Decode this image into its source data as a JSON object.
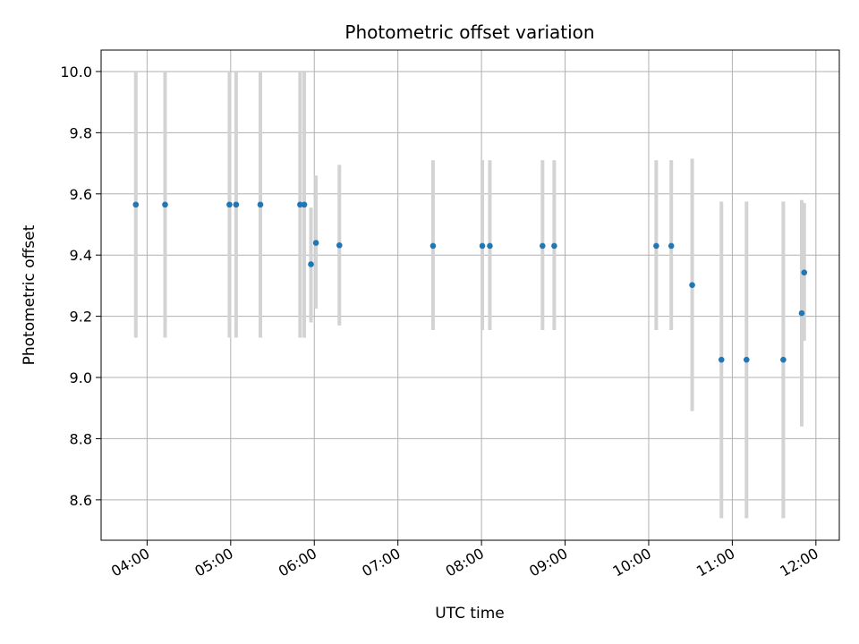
{
  "chart_data": {
    "type": "scatter",
    "title": "Photometric offset variation",
    "xlabel": "UTC time",
    "ylabel": "Photometric offset",
    "x_ticks": [
      "04:00",
      "05:00",
      "06:00",
      "07:00",
      "08:00",
      "09:00",
      "10:00",
      "11:00",
      "12:00"
    ],
    "x_tick_hours": [
      4,
      5,
      6,
      7,
      8,
      9,
      10,
      11,
      12
    ],
    "y_ticks": [
      "8.6",
      "8.8",
      "9.0",
      "9.2",
      "9.4",
      "9.6",
      "9.8",
      "10.0"
    ],
    "y_tick_values": [
      8.6,
      8.8,
      9.0,
      9.2,
      9.4,
      9.6,
      9.8,
      10.0
    ],
    "xlim_hours": [
      3.45,
      12.28
    ],
    "ylim": [
      8.468,
      10.07
    ],
    "grid": true,
    "marker_color": "#1f77b4",
    "errorbar_color": "#d3d3d3",
    "points": [
      {
        "t": 3.865,
        "y": 9.565,
        "lo": 9.13,
        "hi": 10.0
      },
      {
        "t": 4.215,
        "y": 9.565,
        "lo": 9.13,
        "hi": 10.0
      },
      {
        "t": 4.985,
        "y": 9.565,
        "lo": 9.13,
        "hi": 10.0
      },
      {
        "t": 5.065,
        "y": 9.565,
        "lo": 9.13,
        "hi": 10.0
      },
      {
        "t": 5.355,
        "y": 9.565,
        "lo": 9.13,
        "hi": 10.0
      },
      {
        "t": 5.83,
        "y": 9.565,
        "lo": 9.13,
        "hi": 10.0
      },
      {
        "t": 5.88,
        "y": 9.565,
        "lo": 9.13,
        "hi": 10.0
      },
      {
        "t": 5.96,
        "y": 9.37,
        "lo": 9.18,
        "hi": 9.555
      },
      {
        "t": 6.02,
        "y": 9.44,
        "lo": 9.225,
        "hi": 9.66
      },
      {
        "t": 6.3,
        "y": 9.432,
        "lo": 9.17,
        "hi": 9.695
      },
      {
        "t": 7.42,
        "y": 9.43,
        "lo": 9.155,
        "hi": 9.71
      },
      {
        "t": 8.01,
        "y": 9.43,
        "lo": 9.155,
        "hi": 9.71
      },
      {
        "t": 8.1,
        "y": 9.43,
        "lo": 9.155,
        "hi": 9.71
      },
      {
        "t": 8.73,
        "y": 9.43,
        "lo": 9.155,
        "hi": 9.71
      },
      {
        "t": 8.87,
        "y": 9.43,
        "lo": 9.155,
        "hi": 9.71
      },
      {
        "t": 10.09,
        "y": 9.43,
        "lo": 9.155,
        "hi": 9.71
      },
      {
        "t": 10.27,
        "y": 9.43,
        "lo": 9.155,
        "hi": 9.71
      },
      {
        "t": 10.52,
        "y": 9.302,
        "lo": 8.89,
        "hi": 9.715
      },
      {
        "t": 10.87,
        "y": 9.058,
        "lo": 8.54,
        "hi": 9.575
      },
      {
        "t": 11.17,
        "y": 9.058,
        "lo": 8.54,
        "hi": 9.575
      },
      {
        "t": 11.61,
        "y": 9.058,
        "lo": 8.54,
        "hi": 9.575
      },
      {
        "t": 11.83,
        "y": 9.21,
        "lo": 8.84,
        "hi": 9.58
      },
      {
        "t": 11.86,
        "y": 9.343,
        "lo": 9.12,
        "hi": 9.57
      }
    ]
  }
}
